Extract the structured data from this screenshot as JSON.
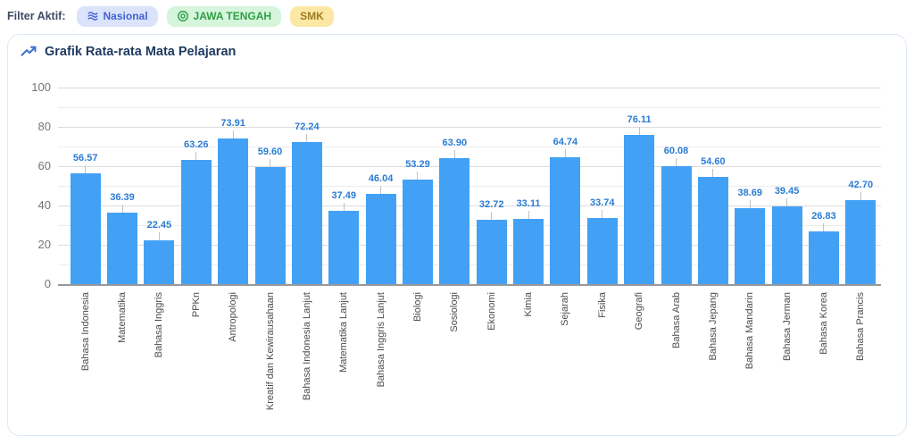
{
  "filter_bar": {
    "label": "Filter Aktif:",
    "badges": [
      {
        "label": "Nasional",
        "icon": "layers-icon",
        "bg": "#dbe3fb",
        "color": "#4263cf"
      },
      {
        "label": "JAWA TENGAH",
        "icon": "circle-dot-icon",
        "bg": "#d5f5dc",
        "color": "#2f9e44"
      },
      {
        "label": "SMK",
        "icon": "none",
        "bg": "#fce8a4",
        "color": "#a07c1e"
      }
    ]
  },
  "card": {
    "title": "Grafik Rata-rata Mata Pelajaran",
    "title_icon": "trending-up-icon"
  },
  "chart_data": {
    "type": "bar",
    "title": "Grafik Rata-rata Mata Pelajaran",
    "categories": [
      "Bahasa Indonesia",
      "Matematika",
      "Bahasa Inggris",
      "PPKn",
      "Antropologi",
      "Kreatif dan Kewirausahaan",
      "Bahasa Indonesia Lanjut",
      "Matematika Lanjut",
      "Bahasa Inggris Lanjut",
      "Biologi",
      "Sosiologi",
      "Ekonomi",
      "Kimia",
      "Sejarah",
      "Fisika",
      "Geografi",
      "Bahasa Arab",
      "Bahasa Jepang",
      "Bahasa Mandarin",
      "Bahasa Jerman",
      "Bahasa Korea",
      "Bahasa Prancis"
    ],
    "values": [
      56.57,
      36.39,
      22.45,
      63.26,
      73.91,
      59.6,
      72.24,
      37.49,
      46.04,
      53.29,
      63.9,
      32.72,
      33.11,
      64.74,
      33.74,
      76.11,
      60.08,
      54.6,
      38.69,
      39.45,
      26.83,
      42.7
    ],
    "xlabel": "",
    "ylabel": "",
    "ylim": [
      0,
      100
    ],
    "y_ticks": [
      0,
      20,
      40,
      60,
      80,
      100
    ],
    "grid_step": 10,
    "grid": true,
    "legend_position": "none",
    "bar_color": "#42A1F5",
    "value_label_color": "#2A7CD4"
  }
}
